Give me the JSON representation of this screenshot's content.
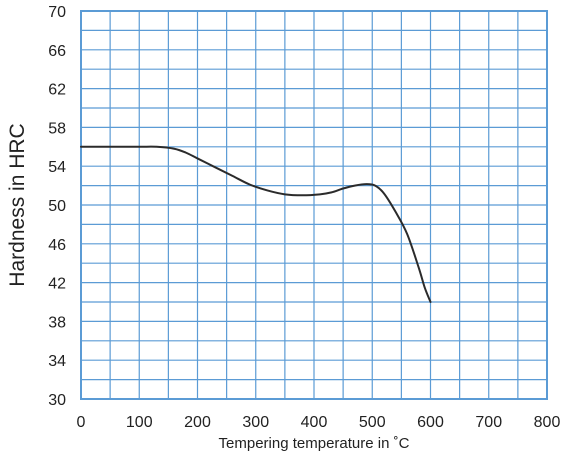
{
  "chart_data": {
    "type": "line",
    "title": "",
    "xlabel": "Tempering temperature in ˚C",
    "ylabel": "Hardness in HRC",
    "xlim": [
      0,
      800
    ],
    "ylim": [
      30,
      70
    ],
    "x_ticks": [
      0,
      100,
      200,
      300,
      400,
      500,
      600,
      700,
      800
    ],
    "y_ticks": [
      30,
      34,
      38,
      42,
      46,
      50,
      54,
      58,
      62,
      66,
      70
    ],
    "minor_grid_x_step": 50,
    "minor_grid_y_step": 2,
    "grid": true,
    "colors": {
      "grid": "#5b9bd5",
      "frame": "#5b9bd5",
      "line": "#2b2b2b"
    },
    "series": [
      {
        "x": [
          0,
          50,
          100,
          130,
          160,
          180,
          200,
          230,
          260,
          290,
          320,
          350,
          380,
          410,
          430,
          450,
          470,
          490,
          505,
          520,
          540,
          560,
          580,
          590,
          600
        ],
        "values": [
          56,
          56,
          56,
          56,
          55.8,
          55.4,
          54.8,
          53.9,
          53.0,
          52.1,
          51.5,
          51.1,
          51.0,
          51.1,
          51.3,
          51.7,
          52.0,
          52.15,
          52.0,
          51.2,
          49.3,
          47.0,
          43.5,
          41.5,
          40.0
        ]
      }
    ]
  }
}
